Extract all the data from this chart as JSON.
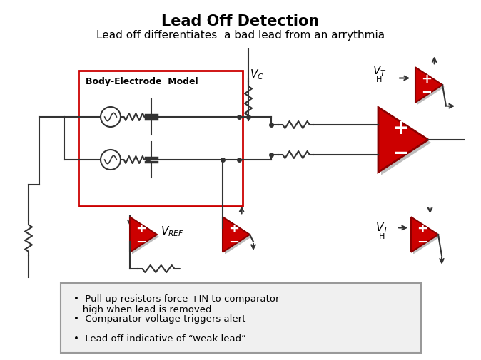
{
  "title": "Lead Off Detection",
  "subtitle": "Lead off differentiates  a bad lead from an arrythmia",
  "body_electrode_label": "Body-Electrode  Model",
  "bullet_points": [
    "Pull up resistors force +IN to comparator\n   high when lead is removed",
    "Comparator voltage triggers alert",
    "Lead off indicative of “weak lead”"
  ],
  "bg_color": "#ffffff",
  "triangle_fill": "#cc0000",
  "triangle_edge": "#8b0000",
  "box_border": "#999999",
  "red_box_border": "#cc0000",
  "wire_color": "#333333",
  "resistor_color": "#333333",
  "capacitor_color": "#333333"
}
